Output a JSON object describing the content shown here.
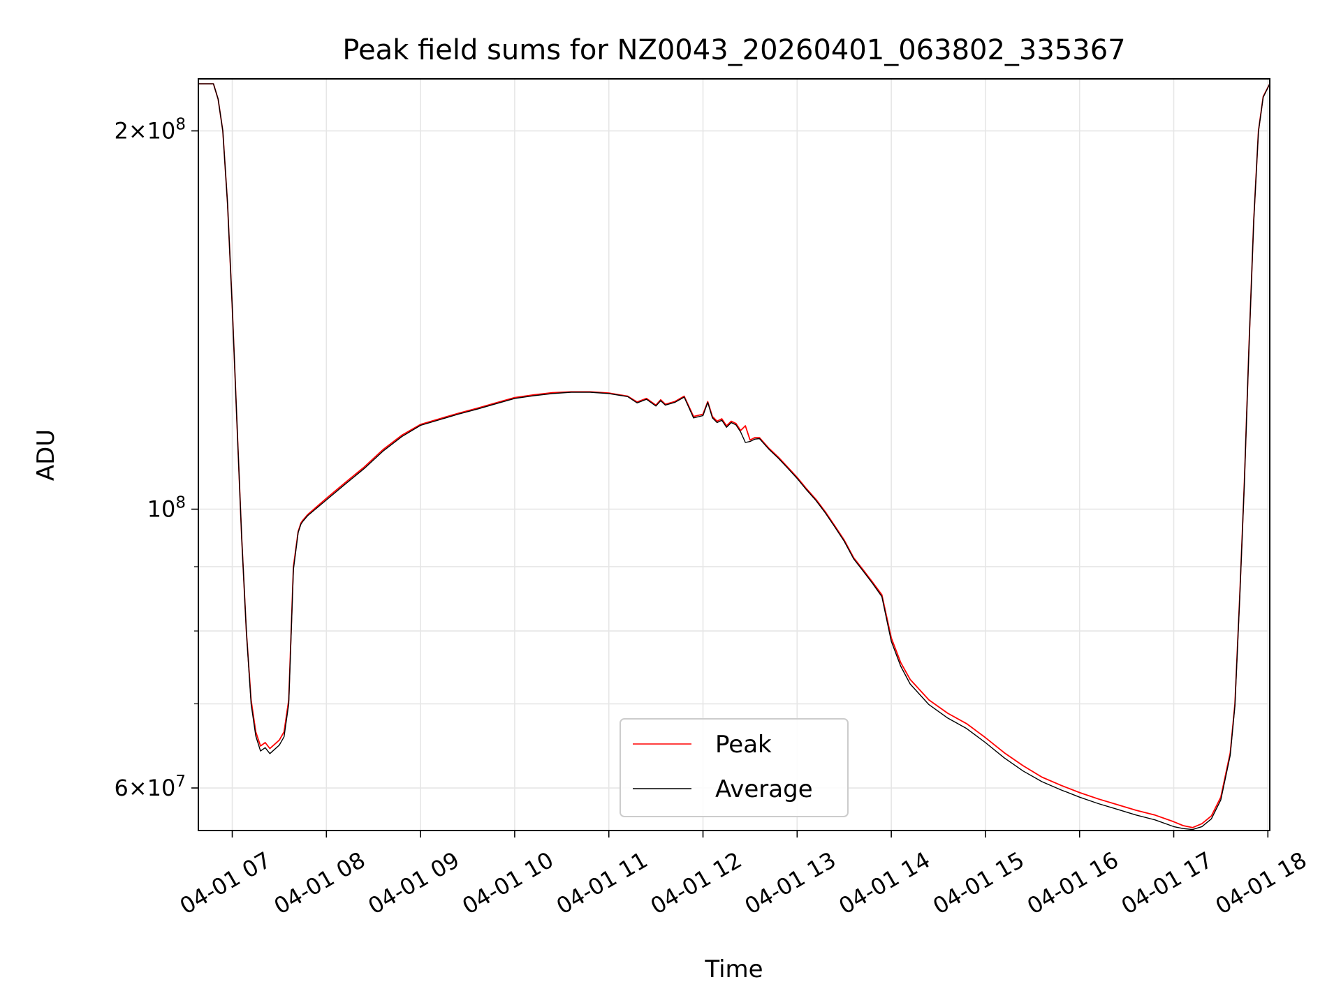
{
  "chart_data": {
    "type": "line",
    "title": "Peak field sums for NZ0043_20260401_063802_335367",
    "xlabel": "Time",
    "ylabel": "ADU",
    "yscale": "log",
    "xlim": [
      6.64,
      18.02
    ],
    "ylim": [
      55500000,
      220000000
    ],
    "grid": true,
    "legend_position": "lower center",
    "x_ticks": [
      {
        "value": 7,
        "label": "04-01 07"
      },
      {
        "value": 8,
        "label": "04-01 08"
      },
      {
        "value": 9,
        "label": "04-01 09"
      },
      {
        "value": 10,
        "label": "04-01 10"
      },
      {
        "value": 11,
        "label": "04-01 11"
      },
      {
        "value": 12,
        "label": "04-01 12"
      },
      {
        "value": 13,
        "label": "04-01 13"
      },
      {
        "value": 14,
        "label": "04-01 14"
      },
      {
        "value": 15,
        "label": "04-01 15"
      },
      {
        "value": 16,
        "label": "04-01 16"
      },
      {
        "value": 17,
        "label": "04-01 17"
      },
      {
        "value": 18,
        "label": "04-01 18"
      }
    ],
    "y_major_ticks": [
      {
        "value": 60000000,
        "mantissa": "6",
        "exponent": "7"
      },
      {
        "value": 100000000,
        "mantissa": "",
        "exponent": "8"
      },
      {
        "value": 200000000,
        "mantissa": "2",
        "exponent": "8"
      }
    ],
    "y_minor_ticks": [
      70000000,
      80000000,
      90000000
    ],
    "tick_base": "10",
    "tick_times": "×",
    "series": [
      {
        "name": "Peak",
        "color": "#ff0000",
        "x": [
          6.64,
          6.8,
          6.85,
          6.9,
          6.95,
          7.0,
          7.05,
          7.1,
          7.15,
          7.2,
          7.25,
          7.3,
          7.35,
          7.4,
          7.45,
          7.5,
          7.55,
          7.6,
          7.65,
          7.7,
          7.73,
          7.75,
          7.8,
          8.0,
          8.2,
          8.4,
          8.6,
          8.8,
          9.0,
          9.2,
          9.4,
          9.6,
          9.8,
          10.0,
          10.2,
          10.4,
          10.6,
          10.8,
          11.0,
          11.2,
          11.3,
          11.4,
          11.5,
          11.55,
          11.6,
          11.7,
          11.8,
          11.9,
          12.0,
          12.05,
          12.1,
          12.15,
          12.2,
          12.25,
          12.3,
          12.35,
          12.4,
          12.45,
          12.5,
          12.55,
          12.6,
          12.7,
          12.8,
          12.9,
          13.0,
          13.1,
          13.2,
          13.3,
          13.4,
          13.5,
          13.6,
          13.7,
          13.8,
          13.9,
          14.0,
          14.1,
          14.2,
          14.4,
          14.6,
          14.8,
          15.0,
          15.2,
          15.4,
          15.6,
          15.8,
          16.0,
          16.2,
          16.4,
          16.6,
          16.8,
          17.0,
          17.1,
          17.2,
          17.3,
          17.4,
          17.5,
          17.6,
          17.65,
          17.7,
          17.75,
          17.8,
          17.85,
          17.9,
          17.95,
          18.02
        ],
        "y": [
          218000000,
          218000000,
          212000000,
          200000000,
          175000000,
          145000000,
          117000000,
          95000000,
          80000000,
          70500000,
          66500000,
          64800000,
          65200000,
          64500000,
          65000000,
          65500000,
          66500000,
          70500000,
          90000000,
          96000000,
          97500000,
          98000000,
          99000000,
          102000000,
          105000000,
          108000000,
          111500000,
          114500000,
          116800000,
          118000000,
          119200000,
          120300000,
          121500000,
          122700000,
          123300000,
          123800000,
          124000000,
          124000000,
          123700000,
          123000000,
          121700000,
          122500000,
          121000000,
          122200000,
          121200000,
          121800000,
          123000000,
          118500000,
          119000000,
          121800000,
          118500000,
          117500000,
          118000000,
          116500000,
          117500000,
          117000000,
          115500000,
          116500000,
          113500000,
          114000000,
          114000000,
          111800000,
          110000000,
          108000000,
          106000000,
          103800000,
          101800000,
          99500000,
          97000000,
          94500000,
          91500000,
          89500000,
          87500000,
          85500000,
          79000000,
          75500000,
          73200000,
          70500000,
          68800000,
          67500000,
          65800000,
          64000000,
          62500000,
          61200000,
          60300000,
          59500000,
          58800000,
          58200000,
          57600000,
          57100000,
          56400000,
          56000000,
          55800000,
          56200000,
          57000000,
          59000000,
          64000000,
          70000000,
          85000000,
          105000000,
          135000000,
          170000000,
          200000000,
          213000000,
          218000000
        ]
      },
      {
        "name": "Average",
        "color": "#000000",
        "x": [
          6.64,
          6.8,
          6.85,
          6.9,
          6.95,
          7.0,
          7.05,
          7.1,
          7.15,
          7.2,
          7.25,
          7.3,
          7.35,
          7.4,
          7.45,
          7.5,
          7.55,
          7.6,
          7.65,
          7.7,
          7.73,
          7.75,
          7.8,
          8.0,
          8.2,
          8.4,
          8.6,
          8.8,
          9.0,
          9.2,
          9.4,
          9.6,
          9.8,
          10.0,
          10.2,
          10.4,
          10.6,
          10.8,
          11.0,
          11.2,
          11.3,
          11.4,
          11.5,
          11.55,
          11.6,
          11.7,
          11.8,
          11.9,
          12.0,
          12.05,
          12.1,
          12.15,
          12.2,
          12.25,
          12.3,
          12.35,
          12.4,
          12.45,
          12.5,
          12.55,
          12.6,
          12.7,
          12.8,
          12.9,
          13.0,
          13.1,
          13.2,
          13.3,
          13.4,
          13.5,
          13.6,
          13.7,
          13.8,
          13.9,
          14.0,
          14.1,
          14.2,
          14.4,
          14.6,
          14.8,
          15.0,
          15.2,
          15.4,
          15.6,
          15.8,
          16.0,
          16.2,
          16.4,
          16.6,
          16.8,
          17.0,
          17.1,
          17.2,
          17.3,
          17.4,
          17.5,
          17.6,
          17.65,
          17.7,
          17.75,
          17.8,
          17.85,
          17.9,
          17.95,
          18.02
        ],
        "y": [
          218000000,
          218000000,
          212000000,
          200000000,
          175000000,
          145000000,
          117000000,
          95000000,
          80000000,
          70000000,
          66000000,
          64200000,
          64600000,
          63900000,
          64400000,
          64900000,
          65900000,
          70000000,
          89500000,
          95800000,
          97300000,
          97800000,
          98800000,
          101700000,
          104700000,
          107700000,
          111200000,
          114200000,
          116600000,
          117800000,
          119000000,
          120100000,
          121300000,
          122500000,
          123100000,
          123600000,
          123900000,
          123900000,
          123600000,
          122900000,
          121500000,
          122300000,
          120800000,
          122000000,
          121000000,
          121600000,
          122800000,
          118200000,
          118700000,
          121600000,
          118200000,
          117200000,
          117700000,
          116200000,
          117200000,
          116700000,
          115200000,
          113000000,
          113200000,
          113700000,
          113800000,
          111600000,
          109800000,
          107800000,
          105800000,
          103600000,
          101600000,
          99300000,
          96800000,
          94300000,
          91300000,
          89300000,
          87300000,
          85200000,
          78500000,
          75000000,
          72600000,
          69900000,
          68200000,
          66900000,
          65200000,
          63400000,
          61900000,
          60700000,
          59800000,
          59000000,
          58300000,
          57700000,
          57100000,
          56600000,
          55900000,
          55700000,
          55600000,
          55900000,
          56700000,
          58700000,
          63700000,
          69700000,
          84700000,
          104700000,
          134700000,
          169700000,
          199700000,
          212700000,
          218000000
        ]
      }
    ]
  }
}
